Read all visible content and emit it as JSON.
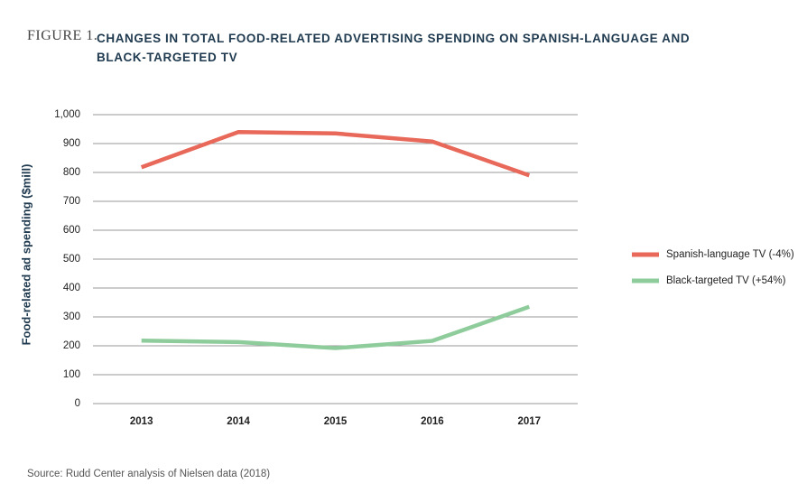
{
  "chart_data": {
    "type": "line",
    "figure_label": "FIGURE 1.",
    "title": "CHANGES IN TOTAL FOOD-RELATED ADVERTISING SPENDING ON SPANISH-LANGUAGE AND BLACK-TARGETED TV",
    "y_label": "Food-related ad spending ($mill)",
    "source": "Source: Rudd Center analysis of Nielsen data (2018)",
    "categories": [
      "2013",
      "2014",
      "2015",
      "2016",
      "2017"
    ],
    "series": [
      {
        "name": "Spanish-language TV (-4%)",
        "color": "#e8685a",
        "values": [
          818,
          940,
          935,
          907,
          790
        ]
      },
      {
        "name": "Black-targeted TV (+54%)",
        "color": "#8fcc9c",
        "values": [
          218,
          213,
          192,
          217,
          335
        ]
      }
    ],
    "ylim": [
      0,
      1000
    ],
    "yticks": [
      0,
      100,
      200,
      300,
      400,
      500,
      600,
      700,
      800,
      900,
      {
        "value": 1000,
        "label": "1,000"
      }
    ],
    "grid": true,
    "legend": "right"
  }
}
